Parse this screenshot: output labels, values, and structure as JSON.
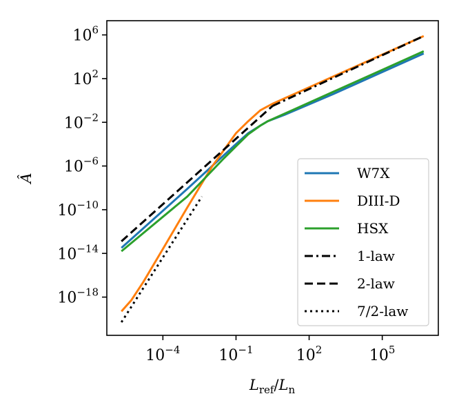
{
  "chart_data": {
    "type": "line",
    "title": "",
    "xlabel": {
      "var": "L",
      "sub1": "ref",
      "sep": "/",
      "var2": "L",
      "sub2": "n"
    },
    "ylabel": "Â",
    "xscale": "log",
    "yscale": "log",
    "xlim_log10": [
      -6.3,
      7.3
    ],
    "ylim_log10": [
      -21.5,
      7.3
    ],
    "xticks": [
      {
        "base": "10",
        "exp": "−4",
        "log10": -4
      },
      {
        "base": "10",
        "exp": "−1",
        "log10": -1
      },
      {
        "base": "10",
        "exp": "2",
        "log10": 2
      },
      {
        "base": "10",
        "exp": "5",
        "log10": 5
      }
    ],
    "yticks": [
      {
        "base": "10",
        "exp": "6",
        "log10": 6
      },
      {
        "base": "10",
        "exp": "2",
        "log10": 2
      },
      {
        "base": "10",
        "exp": "−2",
        "log10": -2
      },
      {
        "base": "10",
        "exp": "−6",
        "log10": -6
      },
      {
        "base": "10",
        "exp": "−10",
        "log10": -10
      },
      {
        "base": "10",
        "exp": "−14",
        "log10": -14
      },
      {
        "base": "10",
        "exp": "−18",
        "log10": -18
      }
    ],
    "grid": false,
    "legend_position": "lower-right",
    "series": [
      {
        "name": "W7X",
        "color": "#1f77b4",
        "dash": "solid",
        "points_log10": [
          [
            -5.7,
            -13.5
          ],
          [
            -3.0,
            -8.1
          ],
          [
            -1.0,
            -4.0
          ],
          [
            -0.5,
            -3.0
          ],
          [
            0.0,
            -2.3
          ],
          [
            0.3,
            -1.9
          ],
          [
            1.0,
            -1.3
          ],
          [
            3.0,
            0.6
          ],
          [
            5.0,
            2.6
          ],
          [
            6.7,
            4.3
          ]
        ]
      },
      {
        "name": "DIII-D",
        "color": "#ff7f0e",
        "dash": "solid",
        "points_log10": [
          [
            -5.7,
            -19.3
          ],
          [
            -5.3,
            -18.3
          ],
          [
            -4.8,
            -16.6
          ],
          [
            -4.0,
            -13.6
          ],
          [
            -3.0,
            -9.8
          ],
          [
            -2.0,
            -6.1
          ],
          [
            -1.0,
            -3.0
          ],
          [
            -0.5,
            -1.9
          ],
          [
            0.0,
            -0.9
          ],
          [
            0.5,
            -0.3
          ],
          [
            1.0,
            0.2
          ],
          [
            3.0,
            2.2
          ],
          [
            5.0,
            4.2
          ],
          [
            6.7,
            5.9
          ]
        ]
      },
      {
        "name": "HSX",
        "color": "#2ca02c",
        "dash": "solid",
        "points_log10": [
          [
            -5.7,
            -13.8
          ],
          [
            -3.0,
            -8.8
          ],
          [
            -1.5,
            -5.3
          ],
          [
            -1.0,
            -4.2
          ],
          [
            -0.5,
            -3.1
          ],
          [
            0.0,
            -2.3
          ],
          [
            0.3,
            -1.9
          ],
          [
            1.0,
            -1.2
          ],
          [
            3.0,
            0.8
          ],
          [
            5.0,
            2.8
          ],
          [
            6.7,
            4.5
          ]
        ]
      },
      {
        "name": "1-law",
        "color": "#000000",
        "dash": "dashdot",
        "points_log10": [
          [
            0.5,
            -0.5
          ],
          [
            6.7,
            5.9
          ]
        ]
      },
      {
        "name": "2-law",
        "color": "#000000",
        "dash": "dashed",
        "points_log10": [
          [
            -5.7,
            -12.9
          ],
          [
            0.5,
            -0.5
          ]
        ]
      },
      {
        "name": "7/2-law",
        "color": "#000000",
        "dash": "dotted",
        "points_log10": [
          [
            -5.7,
            -20.3
          ],
          [
            -2.4,
            -8.8
          ]
        ]
      }
    ]
  }
}
